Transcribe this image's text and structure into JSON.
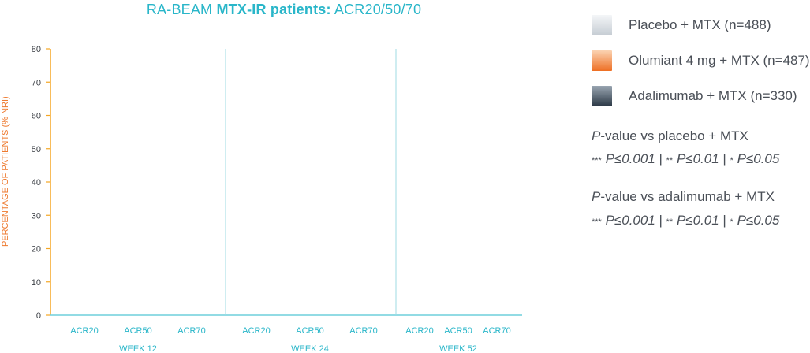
{
  "title": {
    "prefix": "RA-BEAM ",
    "bold": "MTX-IR patients:",
    "suffix": " ACR20/50/70"
  },
  "legend": [
    {
      "label": "Placebo + MTX (n=488)",
      "color": "#c5ccd3"
    },
    {
      "label": "Olumiant 4 mg + MTX (n=487)",
      "color": "#ee6f24"
    },
    {
      "label": "Adalimumab + MTX (n=330)",
      "color": "#2b3845"
    }
  ],
  "pvalue_notes": [
    {
      "heading_italic": "P",
      "heading_rest": "-value vs placebo + MTX",
      "line": [
        {
          "stars": "***",
          "text": " P≤0.001"
        },
        {
          "sep": " | "
        },
        {
          "stars": "**",
          "text": " P≤0.01"
        },
        {
          "sep": " | "
        },
        {
          "stars": "*",
          "text": " P≤0.05"
        }
      ]
    },
    {
      "heading_italic": "P",
      "heading_rest": "-value vs adalimumab + MTX",
      "line": [
        {
          "stars": "***",
          "text": " P≤0.001"
        },
        {
          "sep": " | "
        },
        {
          "stars": "**",
          "text": " P≤0.01"
        },
        {
          "sep": " | "
        },
        {
          "stars": "*",
          "text": " P≤0.05"
        }
      ]
    }
  ],
  "chart_data": {
    "type": "bar",
    "title": "RA-BEAM MTX-IR patients: ACR20/50/70",
    "ylabel": "PERCENTAGE OF PATIENTS (% NRI)",
    "ylim": [
      0,
      80
    ],
    "yticks": [
      0,
      10,
      20,
      30,
      40,
      50,
      60,
      70,
      80
    ],
    "groups": [
      {
        "label": "WEEK 12",
        "categories": [
          "ACR20",
          "ACR50",
          "ACR70"
        ]
      },
      {
        "label": "WEEK 24",
        "categories": [
          "ACR20",
          "ACR50",
          "ACR70"
        ]
      },
      {
        "label": "WEEK 52",
        "categories": [
          "ACR20",
          "ACR50",
          "ACR70"
        ]
      }
    ],
    "series": [
      {
        "name": "Placebo + MTX (n=488)",
        "values": []
      },
      {
        "name": "Olumiant 4 mg + MTX (n=487)",
        "values": []
      },
      {
        "name": "Adalimumab + MTX (n=330)",
        "values": []
      }
    ],
    "colors": {
      "axis": "#f5a623",
      "divider": "#9fdbe3",
      "ticklabel": "#3b3f45",
      "category": "#29b6c9"
    }
  }
}
